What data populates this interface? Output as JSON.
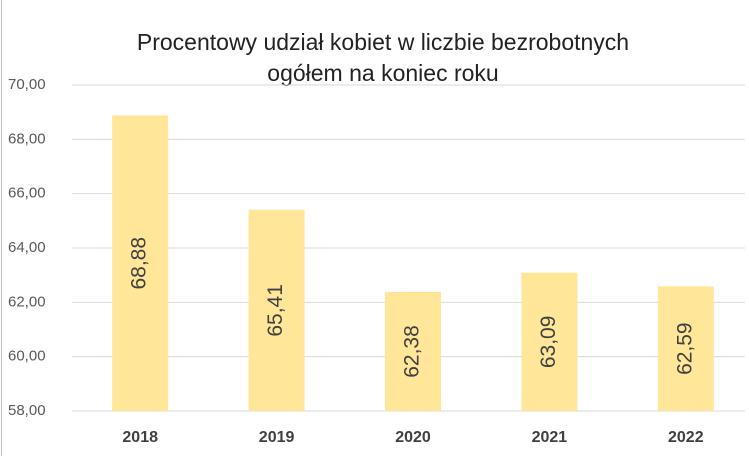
{
  "chart_data": {
    "type": "bar",
    "title": [
      "Procentowy udział kobiet w liczbie bezrobotnych",
      "ogółem na koniec roku"
    ],
    "categories": [
      "2018",
      "2019",
      "2020",
      "2021",
      "2022"
    ],
    "values": [
      68.88,
      65.41,
      62.38,
      63.09,
      62.59
    ],
    "value_labels": [
      "68,88",
      "65,41",
      "62,38",
      "63,09",
      "62,59"
    ],
    "color": "#ffe699",
    "ylim": [
      58,
      70
    ],
    "yticks": [
      {
        "value": 58,
        "label": "58,00"
      },
      {
        "value": 60,
        "label": "60,00"
      },
      {
        "value": 62,
        "label": "62,00"
      },
      {
        "value": 64,
        "label": "64,00"
      },
      {
        "value": 66,
        "label": "66,00"
      },
      {
        "value": 68,
        "label": "68,00"
      },
      {
        "value": 70,
        "label": "70,00"
      }
    ],
    "grid": true
  }
}
